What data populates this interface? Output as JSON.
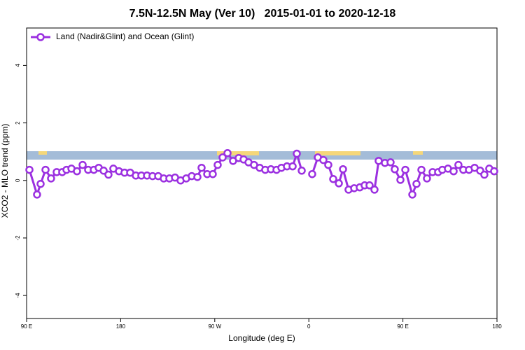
{
  "chart_data": {
    "type": "line",
    "title": "7.5N-12.5N May (Ver 10)   2015-01-01 to 2020-12-18",
    "x_label": "Longitude (deg E)",
    "y_label": "XCO2 - MLO trend (ppm)",
    "xlim": [
      90,
      540
    ],
    "ylim": [
      -4.8,
      5.3
    ],
    "xticks": [
      {
        "value": 90,
        "label": "90 E"
      },
      180,
      {
        "value": 270,
        "label": "90 W"
      },
      {
        "value": 360,
        "label": "0"
      },
      {
        "value": 450,
        "label": "90 E"
      },
      180
    ],
    "yticks": [
      -4,
      -2,
      0,
      2,
      4
    ],
    "legend": "upper left",
    "x": [
      92.7,
      100,
      103.4,
      108.1,
      113.4,
      118.8,
      124.1,
      128.2,
      132.9,
      138.2,
      143.6,
      148.9,
      154.3,
      159,
      163.7,
      168.3,
      173,
      178.4,
      183.7,
      189.1,
      194.5,
      199.8,
      205.2,
      210.5,
      215.9,
      221.2,
      226.6,
      232,
      237.3,
      242.7,
      248,
      253.4,
      257.4,
      262.8,
      268.1,
      272.8,
      277.5,
      282.2,
      287.5,
      292.9,
      297.6,
      302.3,
      307.6,
      313,
      318.3,
      323.7,
      329.1,
      333.8,
      339.1,
      344.5,
      348.5,
      353.2,
      358,
      363.2,
      368.6,
      373.9,
      378.6,
      383.3,
      388.7,
      392.7,
      398,
      403.4,
      408.7,
      413.4,
      418.1,
      422.8,
      426.8,
      432.8,
      438.2,
      442.2,
      447.6,
      452.3,
      459,
      463,
      467.7,
      473,
      478.4,
      483.7,
      487.7,
      493.1,
      498.5,
      503.1,
      507.8,
      513.2,
      518.6,
      523.9,
      527.9,
      532.6,
      537.3
    ],
    "series": [
      {
        "name": "Land (Nadir&Glint) and Ocean (Glint)",
        "color": "#9b30e0",
        "values": [
          0.37,
          -0.49,
          -0.12,
          0.37,
          0.07,
          0.29,
          0.29,
          0.37,
          0.41,
          0.32,
          0.54,
          0.37,
          0.37,
          0.44,
          0.34,
          0.2,
          0.41,
          0.32,
          0.27,
          0.27,
          0.17,
          0.17,
          0.17,
          0.15,
          0.15,
          0.07,
          0.07,
          0.1,
          0,
          0.07,
          0.15,
          0.12,
          0.44,
          0.22,
          0.22,
          0.54,
          0.8,
          0.95,
          0.68,
          0.78,
          0.73,
          0.63,
          0.54,
          0.44,
          0.37,
          0.39,
          0.37,
          0.44,
          0.49,
          0.49,
          0.93,
          0.34,
          null,
          0.22,
          0.8,
          0.71,
          0.54,
          0.05,
          -0.1,
          0.39,
          -0.32,
          -0.27,
          -0.24,
          -0.17,
          -0.17,
          -0.32,
          0.68,
          0.61,
          0.63,
          0.39,
          0.02,
          0.37,
          -0.49,
          -0.12,
          0.37,
          0.07,
          0.29,
          0.29,
          0.37,
          0.41,
          0.32,
          0.54,
          0.37,
          0.37,
          0.44,
          0.34,
          0.2,
          0.41,
          0.32
        ]
      }
    ]
  }
}
